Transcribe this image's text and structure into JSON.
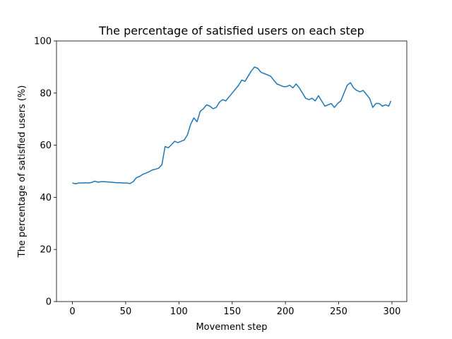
{
  "chart_data": {
    "type": "line",
    "title": "The percentage of satisfied users on each step",
    "xlabel": "Movement step",
    "ylabel": "The percentage of satisfied users (%)",
    "x": [
      0,
      3,
      6,
      9,
      12,
      15,
      18,
      21,
      24,
      27,
      30,
      33,
      36,
      39,
      42,
      45,
      48,
      51,
      54,
      57,
      60,
      63,
      66,
      69,
      72,
      75,
      78,
      81,
      84,
      87,
      90,
      93,
      96,
      99,
      102,
      105,
      108,
      111,
      114,
      117,
      120,
      123,
      126,
      129,
      132,
      135,
      138,
      141,
      144,
      147,
      150,
      153,
      156,
      159,
      162,
      165,
      168,
      171,
      174,
      177,
      180,
      183,
      186,
      189,
      192,
      195,
      198,
      201,
      204,
      207,
      210,
      213,
      216,
      219,
      222,
      225,
      228,
      231,
      234,
      237,
      240,
      243,
      246,
      249,
      252,
      255,
      258,
      261,
      264,
      267,
      270,
      273,
      276,
      279,
      282,
      285,
      288,
      291,
      294,
      297,
      299
    ],
    "values": [
      45.5,
      45.2,
      45.5,
      45.5,
      45.6,
      45.5,
      45.7,
      46.2,
      45.8,
      46,
      46,
      45.9,
      45.8,
      45.7,
      45.6,
      45.6,
      45.5,
      45.5,
      45.3,
      46,
      47.5,
      48,
      48.8,
      49.3,
      49.8,
      50.5,
      50.8,
      51.2,
      52.5,
      59.5,
      59,
      60.2,
      61.5,
      61,
      61.5,
      62,
      64,
      68,
      70.5,
      69,
      73,
      74,
      75.5,
      75,
      74,
      74.5,
      76.5,
      77.5,
      77,
      78.5,
      80,
      81.5,
      83,
      85,
      84.5,
      86.5,
      88.5,
      90,
      89.5,
      88,
      87.5,
      87,
      86.5,
      85,
      83.5,
      83,
      82.5,
      82.5,
      83,
      82,
      83.5,
      82,
      80,
      78,
      77.5,
      78,
      77,
      79,
      77,
      75,
      75.5,
      76,
      74.5,
      76,
      77,
      80,
      83,
      84,
      82,
      81,
      80.5,
      81,
      79.5,
      78,
      74.5,
      76,
      76,
      75,
      75.5,
      75,
      77
    ],
    "color": "#1f77b4",
    "xlim": [
      -14.95,
      313.95
    ],
    "xticks": [
      0,
      50,
      100,
      150,
      200,
      250,
      300
    ],
    "ylim": [
      0,
      100
    ],
    "yticks": [
      0,
      20,
      40,
      60,
      80,
      100
    ]
  }
}
